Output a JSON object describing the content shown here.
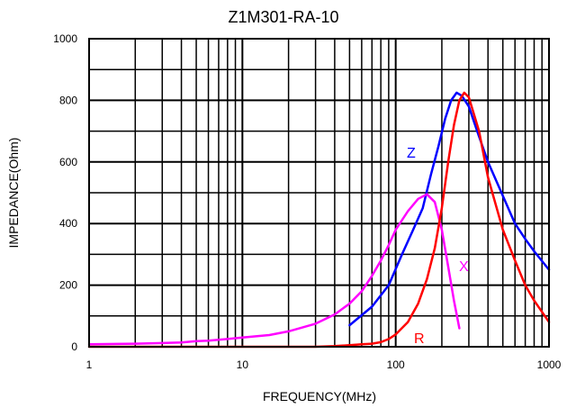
{
  "chart_data": {
    "type": "line",
    "title": "Z1M301-RA-10",
    "xlabel": "FREQUENCY(MHz)",
    "ylabel": "IMPEDANCE(Ohm)",
    "x_scale": "log",
    "xlim": [
      1,
      1000
    ],
    "ylim": [
      0,
      1000
    ],
    "grid": true,
    "x_ticks": [
      "1",
      "10",
      "100",
      "1000"
    ],
    "y_ticks": [
      "0",
      "200",
      "400",
      "600",
      "800",
      "1000"
    ],
    "series": [
      {
        "name": "Z",
        "color": "#0000ff",
        "x": [
          50,
          70,
          90,
          110,
          130,
          150,
          170,
          190,
          210,
          230,
          250,
          270,
          300,
          340,
          400,
          500,
          600,
          700,
          800,
          1000
        ],
        "y": [
          70,
          130,
          200,
          300,
          380,
          450,
          560,
          650,
          740,
          800,
          825,
          815,
          780,
          700,
          600,
          490,
          400,
          350,
          310,
          250
        ]
      },
      {
        "name": "X",
        "color": "#ff00ff",
        "x": [
          1,
          2,
          3,
          4,
          5,
          6,
          8,
          10,
          15,
          20,
          30,
          40,
          50,
          60,
          70,
          80,
          90,
          100,
          120,
          140,
          160,
          180,
          200,
          220,
          240,
          260
        ],
        "y": [
          8,
          10,
          12,
          14,
          18,
          20,
          25,
          30,
          38,
          50,
          75,
          105,
          140,
          180,
          230,
          280,
          330,
          380,
          440,
          480,
          495,
          470,
          380,
          260,
          150,
          60
        ]
      },
      {
        "name": "R",
        "color": "#ff0000",
        "x": [
          1,
          30,
          40,
          50,
          60,
          70,
          80,
          90,
          100,
          120,
          140,
          160,
          180,
          200,
          220,
          240,
          260,
          280,
          300,
          350,
          400,
          500,
          600,
          700,
          800,
          1000
        ],
        "y": [
          0,
          0,
          2,
          5,
          8,
          10,
          15,
          25,
          40,
          80,
          140,
          220,
          320,
          450,
          600,
          720,
          800,
          825,
          810,
          700,
          550,
          380,
          280,
          200,
          150,
          80
        ]
      }
    ]
  },
  "series_labels": {
    "z": "Z",
    "x": "X",
    "r": "R"
  }
}
